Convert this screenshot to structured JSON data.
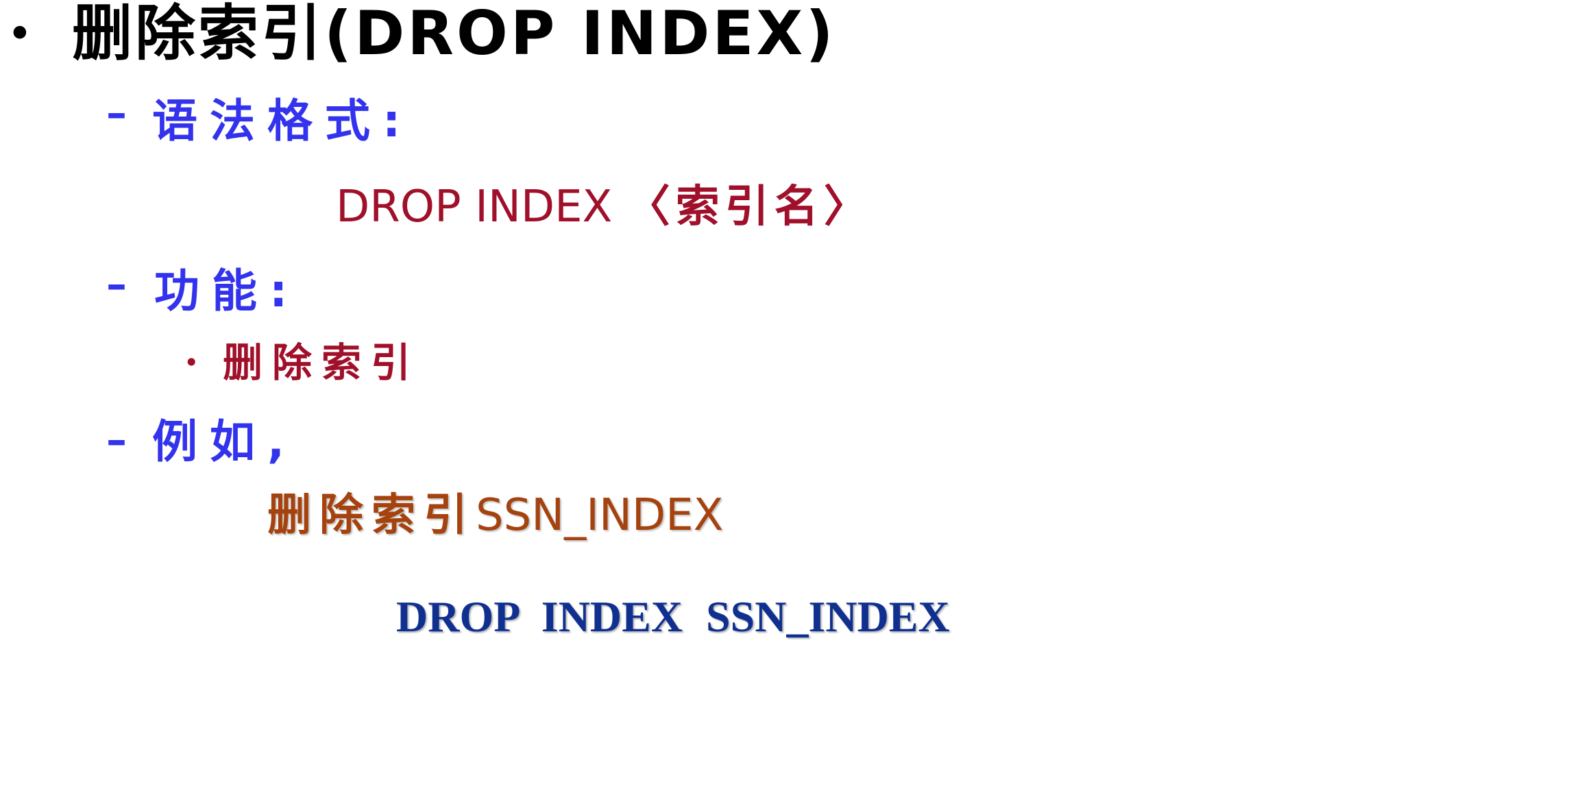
{
  "heading": {
    "bullet": "•",
    "title": "删除索引(DROP INDEX)"
  },
  "syntax": {
    "dash": "–",
    "label": "语法格式:",
    "keyword": "DROP INDEX ",
    "param": "〈索引名〉"
  },
  "function": {
    "dash": "–",
    "label": "功能:",
    "bullet": "•",
    "item": "删除索引"
  },
  "example": {
    "dash": "–",
    "label": "例如,",
    "desc_cn": "删除索引",
    "desc_name": "SSN_INDEX",
    "code": "DROP INDEX SSN_INDEX"
  },
  "colors": {
    "heading": "#000000",
    "label_blue": "#3333ee",
    "syntax_red": "#a0102a",
    "example_brown": "#a5420e",
    "code_blue": "#103090"
  }
}
